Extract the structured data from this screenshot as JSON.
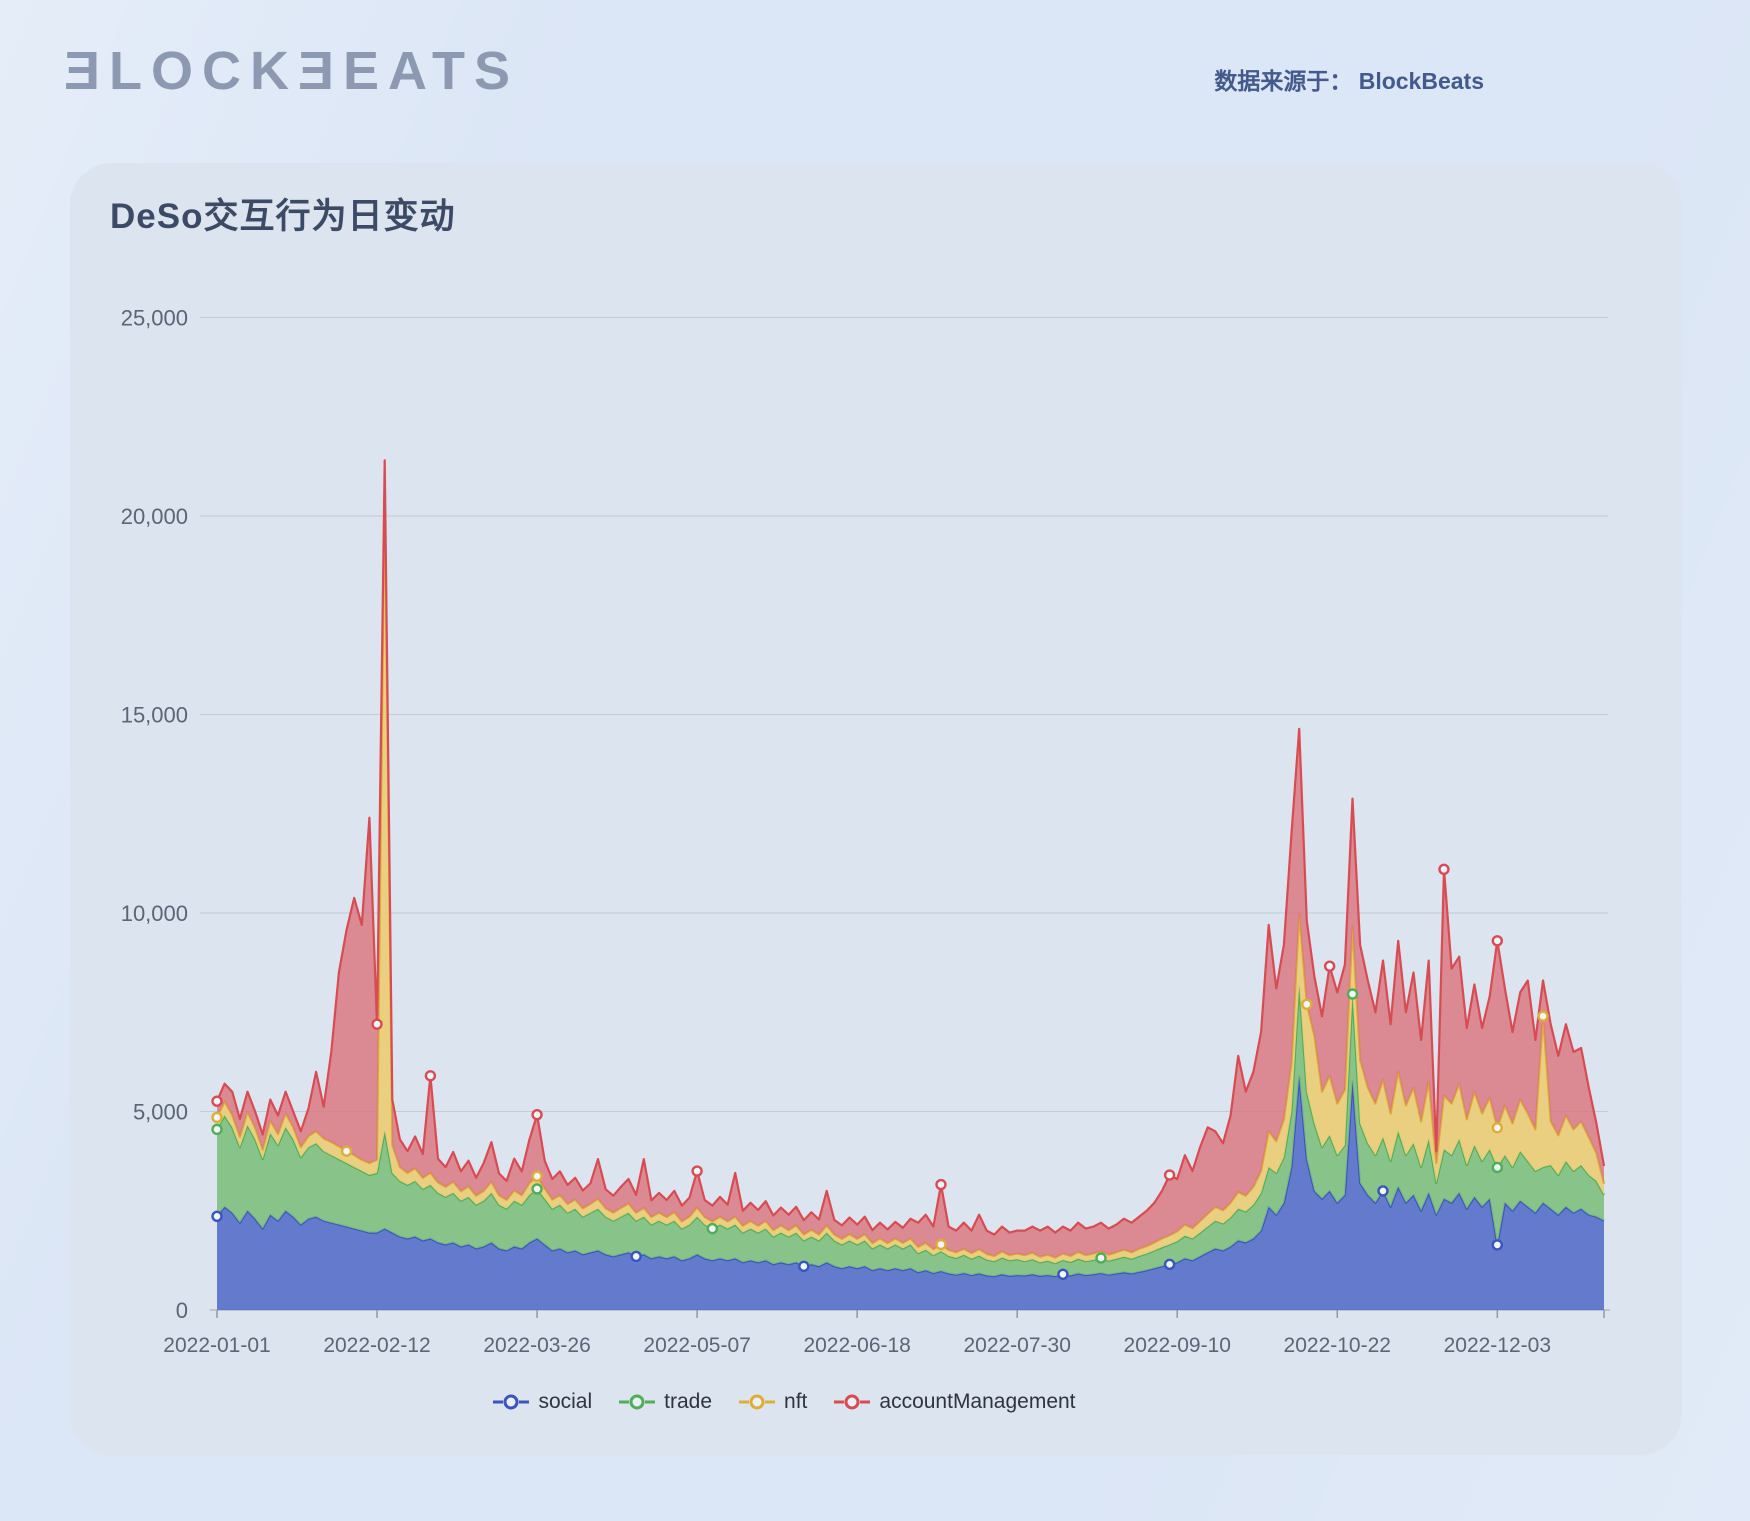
{
  "header": {
    "logo_text": "ƎLOCKƎEATS",
    "source_label": "数据来源于： BlockBeats"
  },
  "chart_data": {
    "type": "area",
    "stacked": true,
    "title": "DeSo交互行为日变动",
    "start_date": "2022-01-01",
    "day_step": 2,
    "end_day": 364,
    "grid": true,
    "legend_position": "bottom",
    "y_axis": {
      "min": 0,
      "max": 25000,
      "tick_values": [
        0,
        5000,
        10000,
        15000,
        20000,
        25000
      ],
      "tick_labels": [
        "0",
        "5,000",
        "10,000",
        "15,000",
        "20,000",
        "25,000"
      ]
    },
    "x_axis": {
      "tick_days": [
        0,
        42,
        84,
        126,
        168,
        210,
        252,
        294,
        336
      ],
      "tick_labels": [
        "2022-01-01",
        "2022-02-12",
        "2022-03-26",
        "2022-05-07",
        "2022-06-18",
        "2022-07-30",
        "2022-09-10",
        "2022-10-22",
        "2022-12-03"
      ]
    },
    "series": [
      {
        "name": "social",
        "line_color": "#3a55bd",
        "fill_color": "rgba(79,104,199,0.85)",
        "marker_days": [
          0,
          110,
          154,
          222,
          250,
          306,
          336
        ],
        "values": [
          2360,
          2600,
          2450,
          2200,
          2500,
          2300,
          2050,
          2400,
          2250,
          2500,
          2350,
          2150,
          2300,
          2350,
          2250,
          2200,
          2150,
          2100,
          2050,
          2000,
          1950,
          1950,
          2050,
          1950,
          1850,
          1800,
          1850,
          1750,
          1800,
          1700,
          1650,
          1700,
          1600,
          1650,
          1550,
          1600,
          1700,
          1550,
          1500,
          1600,
          1550,
          1700,
          1800,
          1650,
          1500,
          1550,
          1450,
          1500,
          1400,
          1450,
          1500,
          1400,
          1350,
          1400,
          1450,
          1350,
          1400,
          1300,
          1350,
          1300,
          1350,
          1250,
          1300,
          1400,
          1300,
          1250,
          1300,
          1250,
          1300,
          1200,
          1250,
          1200,
          1250,
          1150,
          1200,
          1150,
          1200,
          1100,
          1150,
          1100,
          1200,
          1100,
          1050,
          1100,
          1050,
          1100,
          1000,
          1050,
          1000,
          1050,
          1000,
          1050,
          950,
          1000,
          930,
          980,
          920,
          890,
          930,
          880,
          920,
          870,
          850,
          900,
          860,
          880,
          870,
          900,
          860,
          880,
          850,
          900,
          870,
          920,
          880,
          900,
          930,
          890,
          920,
          950,
          920,
          960,
          1000,
          1050,
          1100,
          1150,
          1200,
          1300,
          1250,
          1350,
          1450,
          1550,
          1500,
          1600,
          1750,
          1700,
          1800,
          2000,
          2600,
          2400,
          2700,
          3600,
          5880,
          3800,
          3000,
          2800,
          3000,
          2700,
          2900,
          5760,
          3200,
          2900,
          2700,
          3000,
          2600,
          3100,
          2700,
          2900,
          2500,
          2950,
          2400,
          2800,
          2700,
          2950,
          2550,
          2850,
          2600,
          2800,
          1640,
          2700,
          2500,
          2750,
          2600,
          2450,
          2700,
          2550,
          2400,
          2600,
          2450,
          2550,
          2400,
          2350,
          2250
        ]
      },
      {
        "name": "trade",
        "line_color": "#4fae57",
        "fill_color": "rgba(126,191,125,0.9)",
        "marker_days": [
          0,
          84,
          130,
          232,
          298,
          336
        ],
        "values": [
          2190,
          2300,
          2150,
          1900,
          2150,
          2000,
          1750,
          2050,
          1900,
          2100,
          1950,
          1700,
          1800,
          1850,
          1750,
          1700,
          1650,
          1600,
          1550,
          1500,
          1450,
          1500,
          2450,
          1500,
          1400,
          1350,
          1400,
          1300,
          1350,
          1250,
          1200,
          1250,
          1150,
          1200,
          1100,
          1150,
          1250,
          1100,
          1050,
          1150,
          1100,
          1200,
          1250,
          1150,
          1050,
          1100,
          1000,
          1050,
          950,
          1000,
          1050,
          950,
          900,
          950,
          1000,
          900,
          950,
          850,
          900,
          850,
          900,
          800,
          850,
          950,
          850,
          800,
          850,
          800,
          850,
          750,
          800,
          750,
          800,
          700,
          750,
          700,
          750,
          650,
          700,
          650,
          750,
          650,
          600,
          650,
          600,
          650,
          550,
          600,
          550,
          600,
          550,
          600,
          480,
          520,
          450,
          500,
          440,
          420,
          460,
          410,
          450,
          400,
          380,
          420,
          390,
          400,
          360,
          380,
          340,
          360,
          330,
          360,
          340,
          370,
          350,
          360,
          380,
          350,
          370,
          390,
          370,
          400,
          420,
          450,
          480,
          500,
          530,
          570,
          550,
          600,
          650,
          700,
          680,
          730,
          800,
          780,
          850,
          950,
          1000,
          1050,
          1150,
          1400,
          2300,
          1700,
          1700,
          1300,
          1400,
          1200,
          1250,
          2200,
          1500,
          1300,
          1200,
          1350,
          1150,
          1400,
          1200,
          1300,
          1100,
          1350,
          800,
          1250,
          1200,
          1350,
          1100,
          1300,
          1150,
          1250,
          1950,
          1200,
          1100,
          1250,
          1150,
          1050,
          900,
          1100,
          1000,
          1150,
          1050,
          1100,
          1000,
          900,
          650
        ]
      },
      {
        "name": "nft",
        "line_color": "#dcae38",
        "fill_color": "rgba(235,205,122,0.95)",
        "marker_days": [
          0,
          34,
          84,
          190,
          286,
          336,
          348
        ],
        "values": [
          300,
          350,
          310,
          260,
          340,
          290,
          240,
          320,
          280,
          350,
          300,
          250,
          280,
          300,
          320,
          330,
          320,
          300,
          300,
          280,
          300,
          330,
          16300,
          700,
          350,
          300,
          320,
          280,
          300,
          260,
          250,
          280,
          240,
          260,
          230,
          250,
          280,
          240,
          220,
          260,
          240,
          300,
          320,
          260,
          230,
          240,
          220,
          230,
          210,
          220,
          250,
          210,
          200,
          220,
          230,
          200,
          220,
          190,
          200,
          190,
          210,
          180,
          200,
          230,
          190,
          180,
          200,
          180,
          200,
          170,
          190,
          170,
          190,
          160,
          180,
          160,
          180,
          150,
          170,
          150,
          180,
          150,
          140,
          160,
          140,
          160,
          130,
          150,
          130,
          150,
          140,
          150,
          160,
          170,
          150,
          170,
          150,
          140,
          150,
          140,
          160,
          140,
          130,
          150,
          130,
          140,
          150,
          160,
          140,
          150,
          140,
          160,
          150,
          170,
          150,
          160,
          170,
          150,
          160,
          180,
          160,
          180,
          190,
          200,
          220,
          230,
          250,
          280,
          260,
          290,
          320,
          350,
          330,
          370,
          420,
          400,
          450,
          550,
          900,
          800,
          950,
          1200,
          1800,
          2200,
          2200,
          1400,
          1500,
          1300,
          1400,
          1700,
          1600,
          1400,
          1300,
          1450,
          1200,
          1500,
          1250,
          1400,
          1150,
          1450,
          500,
          1350,
          1300,
          1400,
          1150,
          1350,
          1200,
          1300,
          1000,
          1250,
          1100,
          1300,
          1200,
          1050,
          3800,
          1100,
          1000,
          1150,
          1050,
          1100,
          950,
          700,
          280
        ]
      },
      {
        "name": "accountManagement",
        "line_color": "#d84b52",
        "fill_color": "rgba(219,115,124,0.8)",
        "marker_days": [
          0,
          42,
          56,
          84,
          126,
          190,
          250,
          292,
          322,
          336
        ],
        "values": [
          410,
          450,
          590,
          450,
          510,
          410,
          380,
          530,
          470,
          550,
          400,
          400,
          700,
          1500,
          800,
          2270,
          4380,
          5580,
          6480,
          5920,
          8700,
          3420,
          600,
          1150,
          700,
          550,
          800,
          600,
          2450,
          600,
          500,
          750,
          500,
          650,
          450,
          700,
          1000,
          550,
          480,
          800,
          600,
          1100,
          1550,
          700,
          520,
          600,
          480,
          550,
          450,
          520,
          1000,
          480,
          430,
          530,
          620,
          450,
          1230,
          420,
          500,
          430,
          540,
          400,
          480,
          920,
          430,
          400,
          500,
          420,
          1100,
          380,
          460,
          400,
          500,
          370,
          450,
          390,
          470,
          360,
          440,
          380,
          870,
          370,
          340,
          420,
          360,
          440,
          330,
          400,
          350,
          420,
          380,
          500,
          610,
          710,
          570,
          1510,
          590,
          550,
          660,
          570,
          870,
          590,
          540,
          630,
          570,
          580,
          620,
          660,
          660,
          710,
          630,
          680,
          640,
          740,
          670,
          680,
          720,
          660,
          700,
          780,
          750,
          810,
          890,
          1000,
          1200,
          1520,
          1320,
          1750,
          1440,
          1860,
          2180,
          1900,
          1690,
          2200,
          3430,
          2620,
          2900,
          3500,
          5200,
          3850,
          4400,
          5800,
          4660,
          2100,
          1500,
          1900,
          2760,
          2800,
          3150,
          3220,
          2900,
          2700,
          2300,
          3000,
          2250,
          3300,
          2350,
          2900,
          2050,
          3050,
          300,
          5700,
          3400,
          3200,
          2300,
          2700,
          2150,
          2550,
          4710,
          2950,
          2300,
          2700,
          3350,
          2250,
          900,
          2450,
          2000,
          2300,
          1950,
          1850,
          1250,
          750,
          450
        ]
      }
    ]
  }
}
